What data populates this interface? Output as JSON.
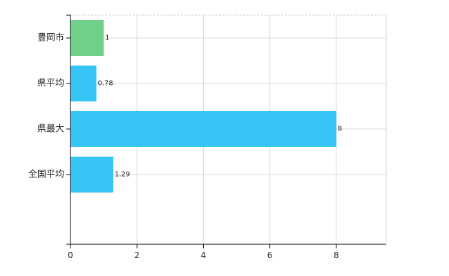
{
  "chart_data": {
    "type": "bar",
    "orientation": "horizontal",
    "categories": [
      "豊岡市",
      "県平均",
      "県最大",
      "全国平均"
    ],
    "values": [
      1,
      0.78,
      8,
      1.29
    ],
    "value_labels": [
      "1",
      "0.78",
      "8",
      "1.29"
    ],
    "colors": [
      "#6fd08a",
      "#36c5f4",
      "#36c5f4",
      "#36c5f4"
    ],
    "xlim": [
      0,
      9.5
    ],
    "x_ticks": [
      0,
      2,
      4,
      6,
      8
    ],
    "x_tick_labels": [
      "0",
      "2",
      "4",
      "6",
      "8"
    ],
    "grid": true,
    "title": "",
    "xlabel": "",
    "ylabel": ""
  }
}
